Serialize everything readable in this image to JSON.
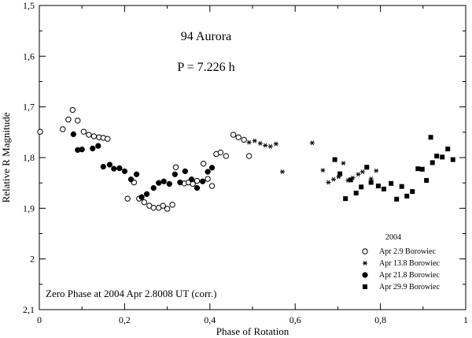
{
  "chart_data": {
    "type": "scatter",
    "xlabel": "Phase of Rotation",
    "ylabel": "Relative R Magnitude",
    "xlim": [
      0,
      1
    ],
    "ylim": [
      1.5,
      2.1
    ],
    "y_inverted": true,
    "grid": false,
    "x_ticks": [
      {
        "value": 0,
        "label": "0"
      },
      {
        "value": 0.2,
        "label": "0,2"
      },
      {
        "value": 0.4,
        "label": "0,4"
      },
      {
        "value": 0.6,
        "label": "0,6"
      },
      {
        "value": 0.8,
        "label": "0,8"
      },
      {
        "value": 1,
        "label": "1"
      }
    ],
    "y_ticks": [
      {
        "value": 1.5,
        "label": "1,5"
      },
      {
        "value": 1.6,
        "label": "1,6"
      },
      {
        "value": 1.7,
        "label": "1,7"
      },
      {
        "value": 1.8,
        "label": "1,8"
      },
      {
        "value": 1.9,
        "label": "1,9"
      },
      {
        "value": 2.0,
        "label": "2"
      },
      {
        "value": 2.1,
        "label": "2,1"
      }
    ],
    "annotations": {
      "object": "94 Aurora",
      "period": "P = 7.226 h",
      "zero_phase": "Zero Phase at 2004 Apr 2.8008 UT (corr.)"
    },
    "legend": {
      "title": "2004",
      "placement": "bottom-right"
    },
    "series": [
      {
        "name": "Apr 2.9 Borowiec",
        "marker": "open-circle",
        "points": [
          [
            0.002,
            1.749
          ],
          [
            0.055,
            1.744
          ],
          [
            0.068,
            1.725
          ],
          [
            0.078,
            1.706
          ],
          [
            0.09,
            1.727
          ],
          [
            0.104,
            1.749
          ],
          [
            0.116,
            1.755
          ],
          [
            0.128,
            1.758
          ],
          [
            0.14,
            1.76
          ],
          [
            0.15,
            1.761
          ],
          [
            0.16,
            1.763
          ],
          [
            0.207,
            1.881
          ],
          [
            0.222,
            1.849
          ],
          [
            0.234,
            1.881
          ],
          [
            0.246,
            1.888
          ],
          [
            0.258,
            1.895
          ],
          [
            0.268,
            1.899
          ],
          [
            0.28,
            1.899
          ],
          [
            0.29,
            1.895
          ],
          [
            0.3,
            1.901
          ],
          [
            0.312,
            1.893
          ],
          [
            0.32,
            1.819
          ],
          [
            0.34,
            1.851
          ],
          [
            0.35,
            1.849
          ],
          [
            0.36,
            1.852
          ],
          [
            0.37,
            1.846
          ],
          [
            0.385,
            1.812
          ],
          [
            0.395,
            1.842
          ],
          [
            0.405,
            1.856
          ],
          [
            0.415,
            1.793
          ],
          [
            0.425,
            1.79
          ],
          [
            0.438,
            1.797
          ],
          [
            0.455,
            1.755
          ],
          [
            0.467,
            1.76
          ],
          [
            0.48,
            1.765
          ],
          [
            0.492,
            1.797
          ]
        ]
      },
      {
        "name": "Apr 13.8 Borowiec",
        "marker": "asterisk",
        "points": [
          [
            0.492,
            1.77
          ],
          [
            0.505,
            1.767
          ],
          [
            0.518,
            1.772
          ],
          [
            0.53,
            1.776
          ],
          [
            0.542,
            1.778
          ],
          [
            0.555,
            1.773
          ],
          [
            0.57,
            1.828
          ],
          [
            0.64,
            1.771
          ],
          [
            0.665,
            1.825
          ],
          [
            0.678,
            1.849
          ],
          [
            0.69,
            1.843
          ],
          [
            0.702,
            1.838
          ],
          [
            0.713,
            1.811
          ],
          [
            0.724,
            1.845
          ],
          [
            0.735,
            1.84
          ],
          [
            0.748,
            1.833
          ],
          [
            0.758,
            1.828
          ],
          [
            0.768,
            1.82
          ],
          [
            0.778,
            1.842
          ],
          [
            0.79,
            1.826
          ]
        ]
      },
      {
        "name": "Apr 21.8 Borowiec",
        "marker": "filled-circle",
        "points": [
          [
            0.08,
            1.754
          ],
          [
            0.09,
            1.785
          ],
          [
            0.1,
            1.784
          ],
          [
            0.125,
            1.782
          ],
          [
            0.138,
            1.777
          ],
          [
            0.15,
            1.818
          ],
          [
            0.165,
            1.814
          ],
          [
            0.175,
            1.822
          ],
          [
            0.188,
            1.821
          ],
          [
            0.2,
            1.827
          ],
          [
            0.215,
            1.843
          ],
          [
            0.228,
            1.833
          ],
          [
            0.24,
            1.878
          ],
          [
            0.252,
            1.872
          ],
          [
            0.268,
            1.86
          ],
          [
            0.28,
            1.85
          ],
          [
            0.292,
            1.847
          ],
          [
            0.305,
            1.852
          ],
          [
            0.318,
            1.833
          ],
          [
            0.33,
            1.849
          ],
          [
            0.342,
            1.827
          ],
          [
            0.357,
            1.843
          ],
          [
            0.37,
            1.86
          ],
          [
            0.383,
            1.847
          ],
          [
            0.395,
            1.828
          ],
          [
            0.405,
            1.82
          ]
        ]
      },
      {
        "name": "Apr 29.9 Borowiec",
        "marker": "filled-square",
        "points": [
          [
            0.693,
            1.804
          ],
          [
            0.705,
            1.832
          ],
          [
            0.718,
            1.881
          ],
          [
            0.73,
            1.844
          ],
          [
            0.743,
            1.87
          ],
          [
            0.755,
            1.858
          ],
          [
            0.768,
            1.819
          ],
          [
            0.778,
            1.849
          ],
          [
            0.795,
            1.856
          ],
          [
            0.808,
            1.862
          ],
          [
            0.825,
            1.851
          ],
          [
            0.838,
            1.882
          ],
          [
            0.85,
            1.857
          ],
          [
            0.862,
            1.876
          ],
          [
            0.875,
            1.867
          ],
          [
            0.888,
            1.822
          ],
          [
            0.898,
            1.823
          ],
          [
            0.908,
            1.845
          ],
          [
            0.918,
            1.76
          ],
          [
            0.922,
            1.81
          ],
          [
            0.932,
            1.797
          ],
          [
            0.945,
            1.799
          ],
          [
            0.958,
            1.783
          ],
          [
            0.97,
            1.804
          ]
        ]
      }
    ]
  }
}
